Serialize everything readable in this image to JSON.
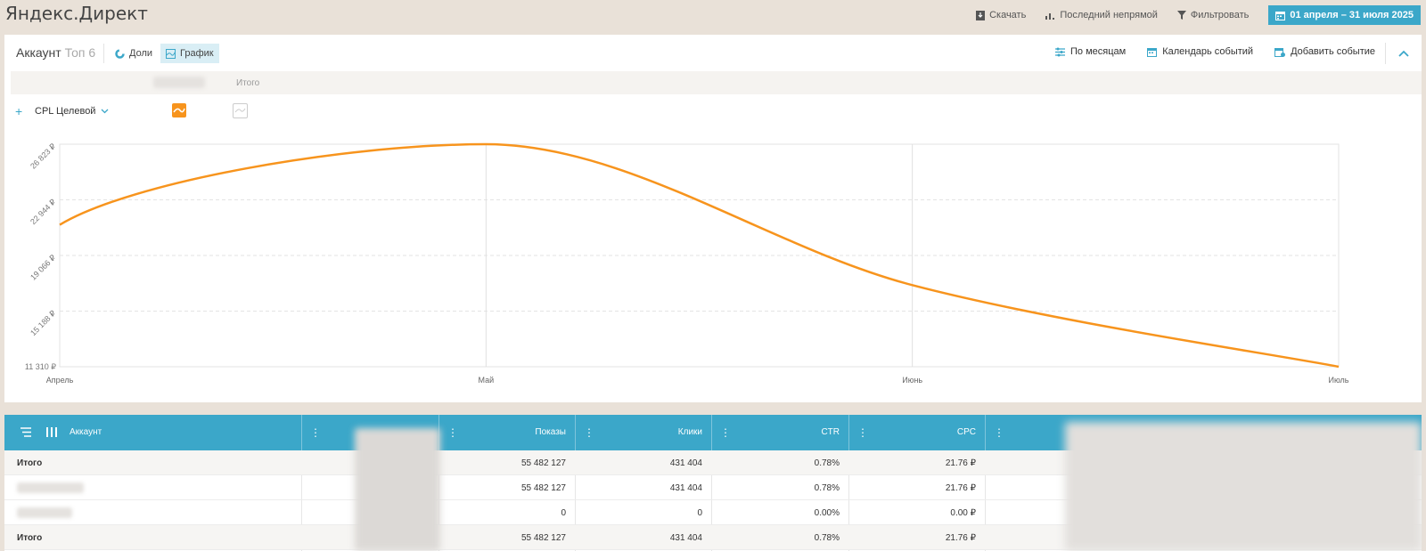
{
  "app": {
    "title": "Яндекс.Директ"
  },
  "top_actions": {
    "download": "Скачать",
    "attribution": "Последний непрямой",
    "filter": "Фильтровать",
    "date_range": "01 апреля – 31 июля 2025"
  },
  "panel": {
    "account_label": "Аккаунт",
    "top_label": "Топ 6",
    "shares_label": "Доли",
    "chart_label": "График",
    "by_months_label": "По месяцам",
    "events_calendar_label": "Календарь событий",
    "add_event_label": "Добавить событие",
    "total_column": "Итого",
    "metric_label": "CPL Целевой"
  },
  "colors": {
    "accent": "#3ba7c9",
    "series": "#f7941d"
  },
  "chart_data": {
    "type": "line",
    "x": [
      "Апрель",
      "Май",
      "Июнь",
      "Июль"
    ],
    "series": [
      {
        "values": [
          21200,
          26823,
          17000,
          11310
        ]
      }
    ],
    "y_ticks": [
      "11 310 ₽",
      "15 188 ₽",
      "19 066 ₽",
      "22 944 ₽",
      "26 823 ₽"
    ],
    "ylim": [
      11310,
      26823
    ],
    "grid": true
  },
  "table": {
    "columns": [
      "Аккаунт",
      "Показы",
      "Клики",
      "CTR",
      "CPC"
    ],
    "rows": [
      {
        "name": "Итого",
        "shows": "55 482 127",
        "clicks": "431 404",
        "ctr": "0.78%",
        "cpc": "21.76 ₽"
      },
      {
        "name": "",
        "shows": "55 482 127",
        "clicks": "431 404",
        "ctr": "0.78%",
        "cpc": "21.76 ₽"
      },
      {
        "name": "",
        "shows": "0",
        "clicks": "0",
        "ctr": "0.00%",
        "cpc": "0.00 ₽"
      },
      {
        "name": "Итого",
        "shows": "55 482 127",
        "clicks": "431 404",
        "ctr": "0.78%",
        "cpc": "21.76 ₽"
      }
    ]
  }
}
